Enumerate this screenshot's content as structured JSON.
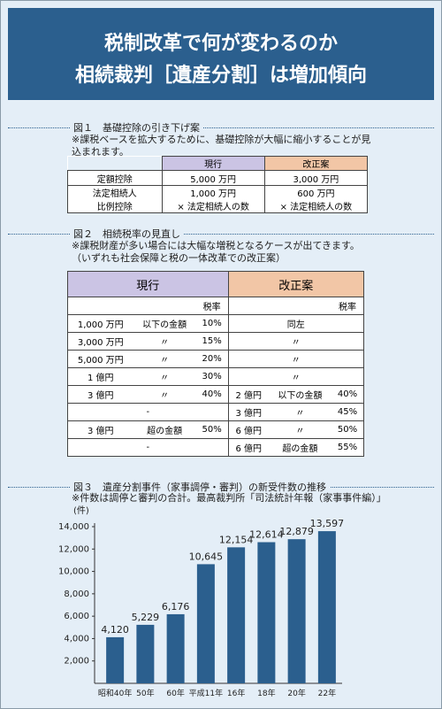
{
  "header": {
    "title_lines": [
      "税制改革で何が変わるのか",
      "相続裁判［遺産分割］は増加傾向"
    ]
  },
  "figure1": {
    "title": "図１　基礎控除の引き下げ案",
    "note": "※課税ベースを拡大するために、基礎控除が大幅に縮小することが見込まれます。",
    "table": {
      "columns": [
        "現行",
        "改正案"
      ],
      "rows": [
        {
          "label": [
            "定額控除"
          ],
          "cells": [
            [
              "5,000 万円"
            ],
            [
              "3,000 万円"
            ]
          ]
        },
        {
          "label": [
            "法定相続人",
            "比例控除"
          ],
          "cells": [
            [
              "1,000 万円",
              "× 法定相続人の数"
            ],
            [
              "600 万円",
              "× 法定相続人の数"
            ]
          ]
        }
      ]
    }
  },
  "figure2": {
    "title": "図２　相続税率の見直し",
    "notes": [
      "※課税財産が多い場合には大幅な増税となるケースが出てきます。",
      "（いずれも社会保障と税の一体改革での改正案）"
    ],
    "table": {
      "groups": [
        "現行",
        "改正案"
      ],
      "rate_headers": [
        "税率",
        "税率"
      ],
      "rows": [
        {
          "left": [
            "1,000 万円",
            "以下の金額",
            "10%"
          ],
          "right": [
            "同左"
          ]
        },
        {
          "left": [
            "3,000 万円",
            "〃",
            "15%"
          ],
          "right": [
            "〃"
          ]
        },
        {
          "left": [
            "5,000 万円",
            "〃",
            "20%"
          ],
          "right": [
            "〃"
          ]
        },
        {
          "left": [
            "1 億円",
            "〃",
            "30%"
          ],
          "right": [
            "〃"
          ]
        },
        {
          "left": [
            "3 億円",
            "〃",
            "40%"
          ],
          "right": [
            "2 億円",
            "以下の金額",
            "40%"
          ]
        },
        {
          "left": [
            "-"
          ],
          "right": [
            "3 億円",
            "〃",
            "45%"
          ]
        },
        {
          "left": [
            "3 億円",
            "超の金額",
            "50%"
          ],
          "right": [
            "6 億円",
            "〃",
            "50%"
          ]
        },
        {
          "left": [
            "-"
          ],
          "right": [
            "6 億円",
            "超の金額",
            "55%"
          ]
        }
      ]
    }
  },
  "chart_data": {
    "type": "bar",
    "title": "図３　遺産分割事件（家事調停・審判）の新受件数の推移",
    "subtitle": "※件数は調停と審判の合計。最高裁判所「司法統計年報（家事事件編）」",
    "y_label": "(件)",
    "categories": [
      "昭和40年",
      "50年",
      "60年",
      "平成11年",
      "16年",
      "18年",
      "20年",
      "22年"
    ],
    "values": [
      4120,
      5229,
      6176,
      10645,
      12154,
      12614,
      12879,
      13597
    ],
    "value_labels": [
      "4,120",
      "5,229",
      "6,176",
      "10,645",
      "12,154",
      "12,614",
      "12,879",
      "13,597"
    ],
    "color": "#2b5f8e",
    "ylim": [
      0,
      14000
    ],
    "yticks": [
      {
        "value": 2000,
        "label": "2,000"
      },
      {
        "value": 4000,
        "label": "4,000"
      },
      {
        "value": 6000,
        "label": "6,000"
      },
      {
        "value": 8000,
        "label": "8,000"
      },
      {
        "value": 10000,
        "label": "10,000"
      },
      {
        "value": 12000,
        "label": "12,000"
      },
      {
        "value": 14000,
        "label": "14,000"
      }
    ]
  }
}
